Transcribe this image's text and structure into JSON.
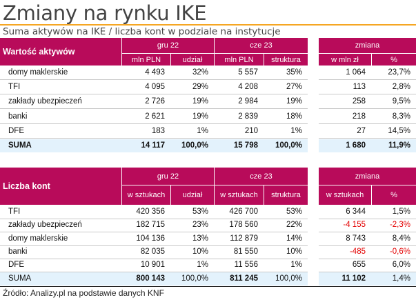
{
  "title": "Zmiany na rynku IKE",
  "subtitle": "Suma aktywów na IKE / liczba kont w podziale na instytucje",
  "source": "Źródło: Analizy.pl na podstawie danych KNF",
  "colors": {
    "header": "#b80b5a",
    "accent": "#f5a623",
    "suma_bg": "#e3f2fc",
    "negative": "#e30000"
  },
  "chart_data": [
    {
      "type": "table",
      "title": "Wartość aktywów",
      "groups": [
        "gru 22",
        "cze 23",
        "zmiana"
      ],
      "columns": [
        "mln PLN",
        "udział",
        "mln PLN",
        "struktura",
        "w mln zł",
        "%"
      ],
      "rows": [
        {
          "label": "domy maklerskie",
          "values": [
            "4 493",
            "32%",
            "5 557",
            "35%",
            "1 064",
            "23,7%"
          ]
        },
        {
          "label": "TFI",
          "values": [
            "4 095",
            "29%",
            "4 208",
            "27%",
            "113",
            "2,8%"
          ]
        },
        {
          "label": "zakłady ubezpieczeń",
          "values": [
            "2 726",
            "19%",
            "2 984",
            "19%",
            "258",
            "9,5%"
          ]
        },
        {
          "label": "banki",
          "values": [
            "2 621",
            "19%",
            "2 839",
            "18%",
            "218",
            "8,3%"
          ]
        },
        {
          "label": "DFE",
          "values": [
            "183",
            "1%",
            "210",
            "1%",
            "27",
            "14,5%"
          ]
        }
      ],
      "total": {
        "label": "SUMA",
        "values": [
          "14 117",
          "100,0%",
          "15 798",
          "100,0%",
          "1 680",
          "11,9%"
        ]
      }
    },
    {
      "type": "table",
      "title": "Liczba kont",
      "groups": [
        "gru 22",
        "cze 23",
        "zmiana"
      ],
      "columns": [
        "w sztukach",
        "udział",
        "w sztukach",
        "struktura",
        "w sztukach",
        "%"
      ],
      "rows": [
        {
          "label": "TFI",
          "values": [
            "420 356",
            "53%",
            "426 700",
            "53%",
            "6 344",
            "1,5%"
          ]
        },
        {
          "label": "zakłady ubezpieczeń",
          "values": [
            "182 715",
            "23%",
            "178 560",
            "22%",
            "-4 155",
            "-2,3%"
          ]
        },
        {
          "label": "domy maklerskie",
          "values": [
            "104 136",
            "13%",
            "112 879",
            "14%",
            "8 743",
            "8,4%"
          ]
        },
        {
          "label": "banki",
          "values": [
            "82 035",
            "10%",
            "81 550",
            "10%",
            "-485",
            "-0,6%"
          ]
        },
        {
          "label": "DFE",
          "values": [
            "10 901",
            "1%",
            "11 556",
            "1%",
            "655",
            "6,0%"
          ]
        }
      ],
      "total": {
        "label": "SUMA",
        "values": [
          "800 143",
          "100,0%",
          "811 245",
          "100,0%",
          "11 102",
          "1,4%"
        ]
      }
    }
  ]
}
